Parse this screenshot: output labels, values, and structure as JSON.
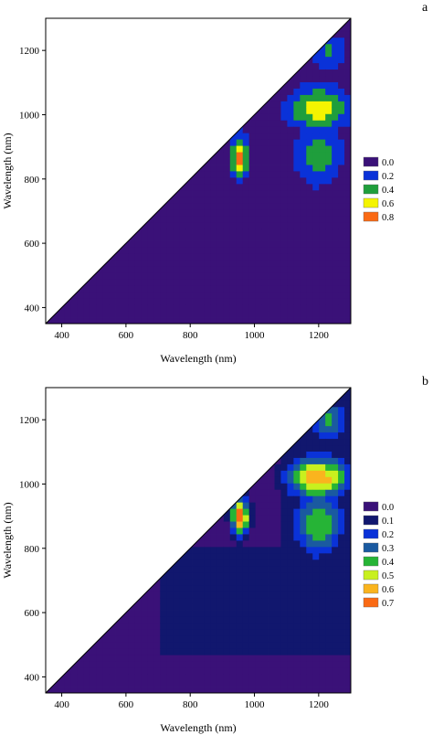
{
  "figure": {
    "panel_labels": [
      "a",
      "b"
    ]
  },
  "colors": {
    "a": [
      "#3a1178",
      "#0a32d8",
      "#1f9e3c",
      "#f4f400",
      "#fa6a14"
    ],
    "b": [
      "#3a1178",
      "#11176e",
      "#0a32d8",
      "#1a5aa0",
      "#26b436",
      "#c8f01e",
      "#fab41e",
      "#fa6a14"
    ]
  },
  "chart_data": [
    {
      "type": "heatmap",
      "panel": "a",
      "xlabel": "Wavelength (nm)",
      "ylabel": "Wavelength (nm)",
      "xlim": [
        350,
        1300
      ],
      "ylim": [
        350,
        1300
      ],
      "xticks": [
        400,
        600,
        800,
        1000,
        1200
      ],
      "yticks": [
        400,
        600,
        800,
        1000,
        1200
      ],
      "legend": {
        "placement": "right",
        "labels": [
          "0.0",
          "0.2",
          "0.4",
          "0.6",
          "0.8"
        ],
        "levels": [
          0.0,
          0.2,
          0.4,
          0.6,
          0.8
        ]
      },
      "features": [
        {
          "x": 955,
          "y": 870,
          "value": 0.85,
          "sx": 30,
          "sy": 70
        },
        {
          "x": 1200,
          "y": 1020,
          "value": 0.75,
          "sx": 100,
          "sy": 70
        },
        {
          "x": 1200,
          "y": 880,
          "value": 0.5,
          "sx": 80,
          "sy": 110
        },
        {
          "x": 1230,
          "y": 1200,
          "value": 0.45,
          "sx": 60,
          "sy": 60
        }
      ]
    },
    {
      "type": "heatmap",
      "panel": "b",
      "xlabel": "Wavelength (nm)",
      "ylabel": "Wavelength (nm)",
      "xlim": [
        350,
        1300
      ],
      "ylim": [
        350,
        1300
      ],
      "xticks": [
        400,
        600,
        800,
        1000,
        1200
      ],
      "yticks": [
        400,
        600,
        800,
        1000,
        1200
      ],
      "legend": {
        "placement": "right",
        "labels": [
          "0.0",
          "0.1",
          "0.2",
          "0.3",
          "0.4",
          "0.5",
          "0.6",
          "0.7"
        ],
        "levels": [
          0.0,
          0.1,
          0.2,
          0.3,
          0.4,
          0.5,
          0.6,
          0.7
        ]
      },
      "features": [
        {
          "x": 955,
          "y": 900,
          "value": 0.75,
          "sx": 30,
          "sy": 60
        },
        {
          "x": 1200,
          "y": 1020,
          "value": 0.68,
          "sx": 100,
          "sy": 70
        },
        {
          "x": 1200,
          "y": 880,
          "value": 0.5,
          "sx": 80,
          "sy": 110
        },
        {
          "x": 1230,
          "y": 1200,
          "value": 0.45,
          "sx": 60,
          "sy": 60
        }
      ]
    }
  ]
}
